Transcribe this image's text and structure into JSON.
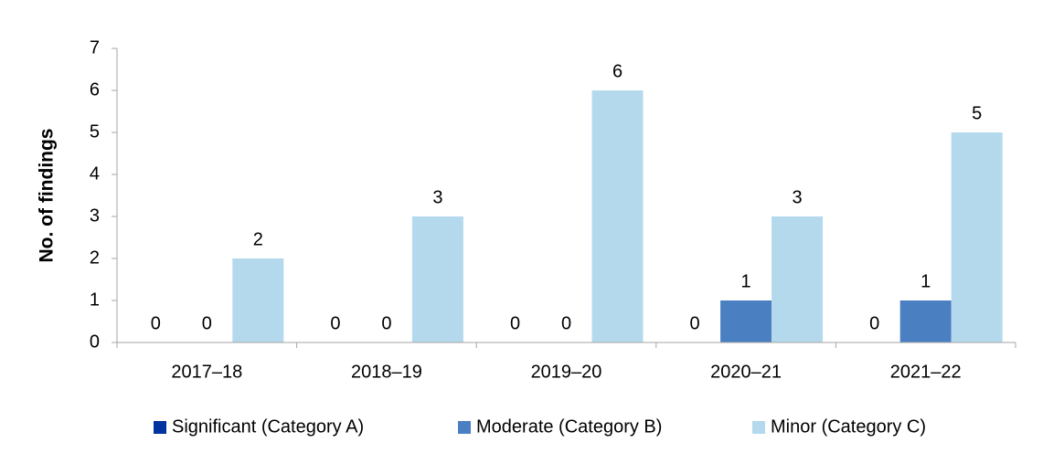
{
  "chart_data": {
    "type": "bar",
    "title": "",
    "xlabel": "",
    "ylabel": "No. of findings",
    "ylim": [
      0,
      7
    ],
    "yticks": [
      "0",
      "1",
      "2",
      "3",
      "4",
      "5",
      "6",
      "7"
    ],
    "grid": false,
    "legend_position": "bottom",
    "categories": [
      "2017–18",
      "2018–19",
      "2019–20",
      "2020–21",
      "2021–22"
    ],
    "series": [
      {
        "name": "Significant (Category A)",
        "color": "#0033a0",
        "values": [
          0,
          0,
          0,
          0,
          0
        ]
      },
      {
        "name": "Moderate (Category B)",
        "color": "#4a7fc1",
        "values": [
          0,
          0,
          0,
          1,
          1
        ]
      },
      {
        "name": "Minor (Category C)",
        "color": "#b5d9ec",
        "values": [
          2,
          3,
          6,
          3,
          5
        ]
      }
    ]
  }
}
